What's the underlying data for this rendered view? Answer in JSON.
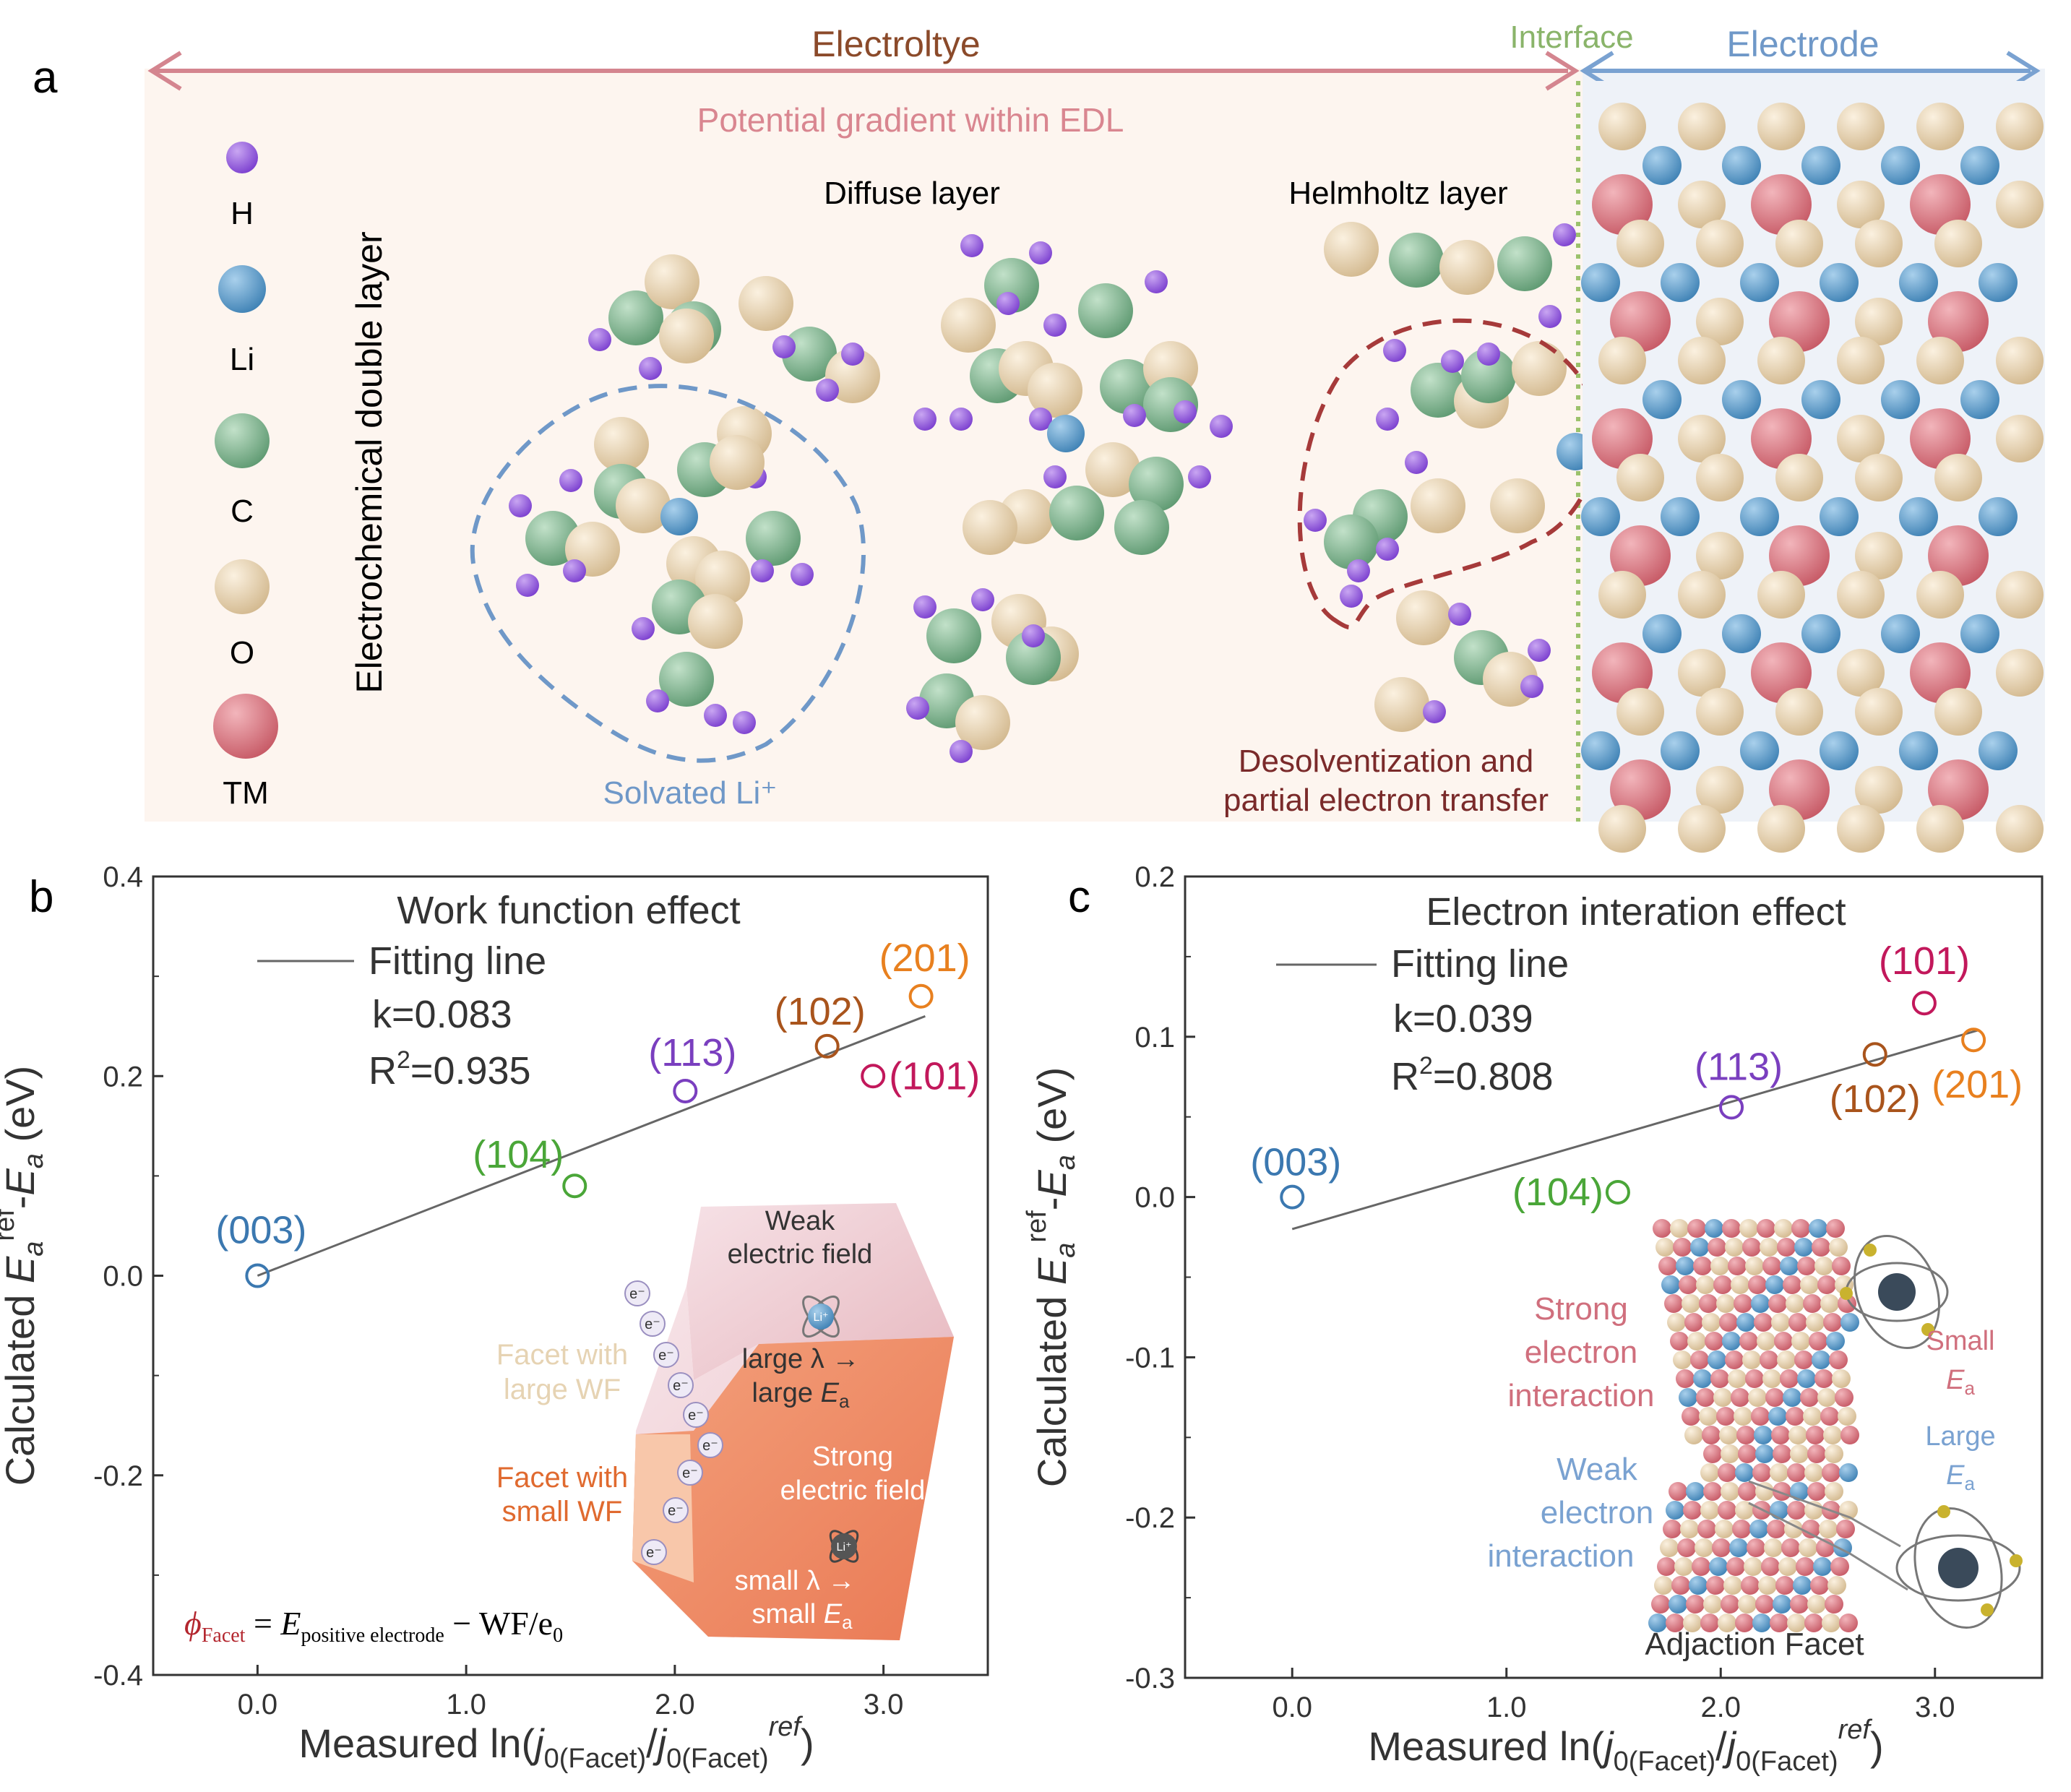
{
  "panel_a": {
    "label": "a",
    "electrolyte": "Electroltye",
    "interface": "Interface",
    "electrode": "Electrode",
    "gradient": "Potential gradient within EDL",
    "edl_label": "Electrochemical double layer",
    "diffuse": "Diffuse layer",
    "helmholtz": "Helmholtz layer",
    "solvated": "Solvated Li⁺",
    "desolv1": "Desolventization and",
    "desolv2": "partial electron transfer",
    "legend": [
      {
        "label": "H",
        "color": "#8e55d6"
      },
      {
        "label": "Li",
        "color": "#5b9bc8"
      },
      {
        "label": "C",
        "color": "#7fb08e"
      },
      {
        "label": "O",
        "color": "#e6d3b3"
      },
      {
        "label": "TM",
        "color": "#d7767f"
      }
    ],
    "colors": {
      "electrolyte_arrow": "#d4858f",
      "interface": "#8ab46a",
      "electrode_arrow": "#7aa2d1",
      "brown": "#8b4a2a",
      "pink_text": "#d98690",
      "blue_text": "#6f98c8",
      "desolv_text": "#7a2a2a"
    }
  },
  "chart_data": [
    {
      "panel": "b",
      "type": "scatter",
      "title": "Work function effect",
      "legend_label": "Fitting line",
      "k": "k=0.083",
      "r2_prefix": "R",
      "r2_sup": "2",
      "r2_value": "=0.935",
      "ylabel_parts": [
        "Calculated ",
        "E",
        "a",
        "ref",
        "-",
        "E",
        "a",
        " (eV)"
      ],
      "xlabel_parts": [
        "Measured ln(",
        "j",
        "0(Facet)",
        "/",
        "j",
        "0(Facet)",
        "ref",
        ")"
      ],
      "xlim": [
        -0.5,
        3.5
      ],
      "ylim": [
        -0.4,
        0.4
      ],
      "xticks": [
        0.0,
        1.0,
        2.0,
        3.0
      ],
      "xtick_labels": [
        "0.0",
        "1.0",
        "2.0",
        "3.0"
      ],
      "yticks": [
        -0.4,
        -0.2,
        0.0,
        0.2,
        0.4
      ],
      "ytick_labels": [
        "-0.4",
        "-0.2",
        "0.0",
        "0.2",
        "0.4"
      ],
      "fit": {
        "x": [
          0.0,
          3.2
        ],
        "y": [
          0.0,
          0.26
        ]
      },
      "points": [
        {
          "label": "(003)",
          "x": 0.0,
          "y": 0.0,
          "color": "#3b78b0"
        },
        {
          "label": "(104)",
          "x": 1.52,
          "y": 0.09,
          "color": "#4aa638"
        },
        {
          "label": "(113)",
          "x": 2.05,
          "y": 0.185,
          "color": "#7a3fbf"
        },
        {
          "label": "(102)",
          "x": 2.73,
          "y": 0.23,
          "color": "#a9541c"
        },
        {
          "label": "(201)",
          "x": 3.18,
          "y": 0.28,
          "color": "#e8801f"
        },
        {
          "label": "(101)",
          "x": 2.95,
          "y": 0.2,
          "color": "#c2185b"
        }
      ],
      "inset": {
        "weak1": "Weak",
        "weak2": "electric field",
        "large_lambda": "large λ →",
        "large_e": "large ",
        "ea_sym": "E",
        "ea_sub": "a",
        "facet_large1": "Facet with",
        "facet_large2": "large WF",
        "facet_small1": "Facet with",
        "facet_small2": "small WF",
        "strong1": "Strong",
        "strong2": "electric field",
        "small_lambda": "small λ →",
        "small_e": "small ",
        "li": "Li⁺",
        "electron": "e⁻",
        "formula_phi": "ϕ",
        "formula_phi_sub": "Facet",
        "formula_eq": " = ",
        "formula_e": "E",
        "formula_e_sub": "positive electrode",
        "formula_rest": " − WF/e",
        "formula_sub0": "0"
      }
    },
    {
      "panel": "c",
      "type": "scatter",
      "title": "Electron interation effect",
      "legend_label": "Fitting line",
      "k": "k=0.039",
      "r2_prefix": "R",
      "r2_sup": "2",
      "r2_value": "=0.808",
      "ylabel_parts": [
        "Calculated ",
        "E",
        "a",
        "ref",
        "-",
        "E",
        "a",
        " (eV)"
      ],
      "xlabel_parts": [
        "Measured ln(",
        "j",
        "0(Facet)",
        "/",
        "j",
        "0(Facet)",
        "ref",
        ")"
      ],
      "xlim": [
        -0.5,
        3.5
      ],
      "ylim": [
        -0.3,
        0.2
      ],
      "xticks": [
        0.0,
        1.0,
        2.0,
        3.0
      ],
      "xtick_labels": [
        "0.0",
        "1.0",
        "2.0",
        "3.0"
      ],
      "yticks": [
        -0.3,
        -0.2,
        -0.1,
        0.0,
        0.1,
        0.2
      ],
      "ytick_labels": [
        "-0.3",
        "-0.2",
        "-0.1",
        "0.0",
        "0.1",
        "0.2"
      ],
      "fit": {
        "x": [
          0.0,
          3.2
        ],
        "y": [
          -0.02,
          0.104
        ]
      },
      "points": [
        {
          "label": "(003)",
          "x": 0.0,
          "y": 0.0,
          "color": "#3b78b0"
        },
        {
          "label": "(104)",
          "x": 1.52,
          "y": 0.003,
          "color": "#4aa638"
        },
        {
          "label": "(113)",
          "x": 2.05,
          "y": 0.056,
          "color": "#7a3fbf"
        },
        {
          "label": "(102)",
          "x": 2.72,
          "y": 0.089,
          "color": "#a9541c"
        },
        {
          "label": "(201)",
          "x": 3.18,
          "y": 0.098,
          "color": "#e8801f"
        },
        {
          "label": "(101)",
          "x": 2.95,
          "y": 0.121,
          "color": "#c2185b"
        }
      ],
      "inset": {
        "strong1": "Strong",
        "strong2": "electron",
        "strong3": "interaction",
        "weak1": "Weak",
        "weak2": "electron",
        "weak3": "interaction",
        "small": "Small",
        "large": "Large",
        "ea_sym": "E",
        "ea_sub": "a",
        "adjaction": "Adjaction Facet"
      }
    }
  ]
}
